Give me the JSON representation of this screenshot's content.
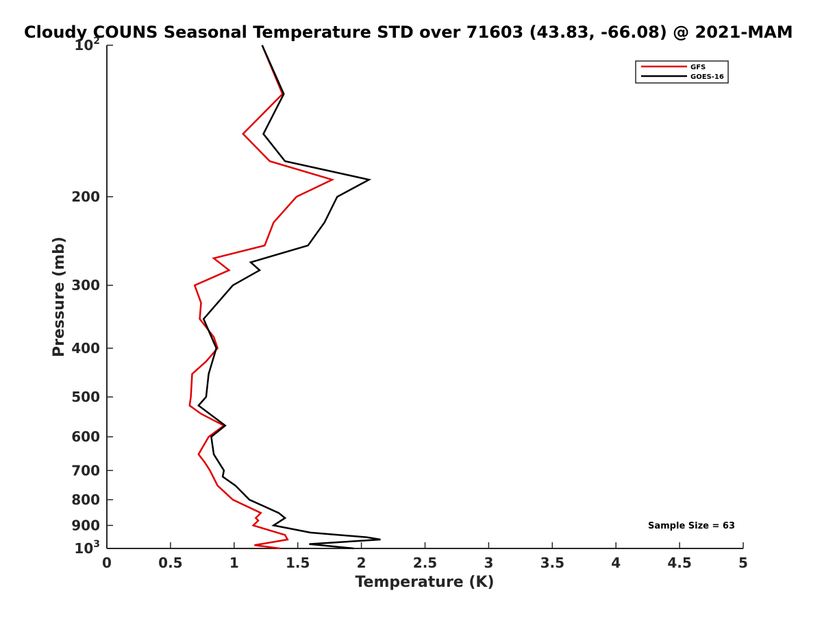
{
  "chart_data": {
    "type": "line",
    "title": "Cloudy COUNS Seasonal Temperature STD over 71603 (43.83, -66.08) @ 2021-MAM",
    "xlabel": "Temperature (K)",
    "ylabel": "Pressure (mb)",
    "xlim": [
      0,
      5
    ],
    "ylim": [
      100,
      1000
    ],
    "yscale": "log",
    "yreversed": true,
    "grid": false,
    "legend_position": "top-right",
    "x_ticks": [
      {
        "value": 0,
        "label": "0"
      },
      {
        "value": 0.5,
        "label": "0.5"
      },
      {
        "value": 1,
        "label": "1"
      },
      {
        "value": 1.5,
        "label": "1.5"
      },
      {
        "value": 2,
        "label": "2"
      },
      {
        "value": 2.5,
        "label": "2.5"
      },
      {
        "value": 3,
        "label": "3"
      },
      {
        "value": 3.5,
        "label": "3.5"
      },
      {
        "value": 4,
        "label": "4"
      },
      {
        "value": 4.5,
        "label": "4.5"
      },
      {
        "value": 5,
        "label": "5"
      }
    ],
    "y_ticks": [
      {
        "value": 100,
        "base": "10",
        "exp": "2"
      },
      {
        "value": 200,
        "label": "200"
      },
      {
        "value": 300,
        "label": "300"
      },
      {
        "value": 400,
        "label": "400"
      },
      {
        "value": 500,
        "label": "500"
      },
      {
        "value": 600,
        "label": "600"
      },
      {
        "value": 700,
        "label": "700"
      },
      {
        "value": 800,
        "label": "800"
      },
      {
        "value": 900,
        "label": "900"
      },
      {
        "value": 1000,
        "base": "10",
        "exp": "3"
      }
    ],
    "series": [
      {
        "name": "GFS",
        "color": "#e00000",
        "points": [
          [
            1.22,
            100
          ],
          [
            1.38,
            125
          ],
          [
            1.07,
            150
          ],
          [
            1.28,
            170
          ],
          [
            1.77,
            185
          ],
          [
            1.49,
            200
          ],
          [
            1.31,
            225
          ],
          [
            1.24,
            250
          ],
          [
            0.84,
            265
          ],
          [
            0.96,
            280
          ],
          [
            0.69,
            300
          ],
          [
            0.74,
            325
          ],
          [
            0.73,
            350
          ],
          [
            0.84,
            380
          ],
          [
            0.87,
            400
          ],
          [
            0.78,
            425
          ],
          [
            0.67,
            450
          ],
          [
            0.66,
            500
          ],
          [
            0.65,
            520
          ],
          [
            0.74,
            540
          ],
          [
            0.92,
            570
          ],
          [
            0.8,
            600
          ],
          [
            0.72,
            650
          ],
          [
            0.77,
            675
          ],
          [
            0.81,
            700
          ],
          [
            0.87,
            750
          ],
          [
            0.99,
            800
          ],
          [
            1.21,
            850
          ],
          [
            1.17,
            870
          ],
          [
            1.19,
            880
          ],
          [
            1.15,
            900
          ],
          [
            1.4,
            940
          ],
          [
            1.42,
            960
          ],
          [
            1.16,
            985
          ],
          [
            1.36,
            1000
          ]
        ]
      },
      {
        "name": "GOES-16",
        "color": "#000000",
        "points": [
          [
            1.22,
            100
          ],
          [
            1.39,
            125
          ],
          [
            1.23,
            150
          ],
          [
            1.4,
            170
          ],
          [
            2.06,
            185
          ],
          [
            1.81,
            200
          ],
          [
            1.71,
            225
          ],
          [
            1.58,
            250
          ],
          [
            1.13,
            270
          ],
          [
            1.2,
            280
          ],
          [
            0.99,
            300
          ],
          [
            0.76,
            350
          ],
          [
            0.86,
            400
          ],
          [
            0.8,
            450
          ],
          [
            0.78,
            500
          ],
          [
            0.72,
            520
          ],
          [
            0.93,
            570
          ],
          [
            0.82,
            600
          ],
          [
            0.84,
            650
          ],
          [
            0.92,
            700
          ],
          [
            0.91,
            720
          ],
          [
            1.01,
            750
          ],
          [
            1.12,
            800
          ],
          [
            1.35,
            850
          ],
          [
            1.4,
            870
          ],
          [
            1.31,
            900
          ],
          [
            1.6,
            930
          ],
          [
            2.04,
            950
          ],
          [
            2.15,
            960
          ],
          [
            1.59,
            980
          ],
          [
            1.94,
            1000
          ]
        ]
      }
    ],
    "annotations": [
      {
        "text": "Sample Size = 63"
      }
    ]
  }
}
